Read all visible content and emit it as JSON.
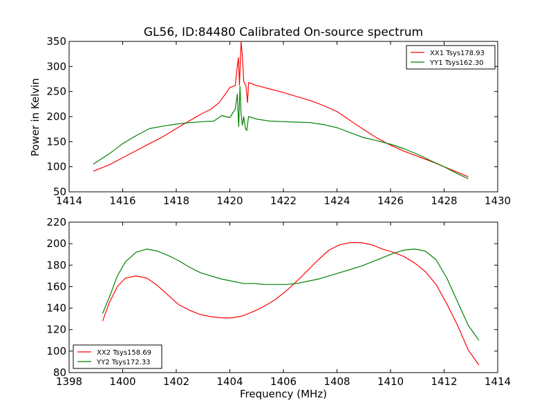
{
  "figure": {
    "title": "GL56, ID:84480 Calibrated On-source spectrum",
    "xlabel": "Frequency (MHz)",
    "ylabel": "Power in Kelvin"
  },
  "colors": {
    "red": "#ff0000",
    "green": "#008000"
  },
  "chart_data": [
    {
      "type": "line",
      "title": "GL56, ID:84480 Calibrated On-source spectrum",
      "xlabel": "",
      "ylabel": "Power in Kelvin",
      "xlim": [
        1414,
        1430
      ],
      "ylim": [
        50,
        350
      ],
      "xticks": [
        1414,
        1416,
        1418,
        1420,
        1422,
        1424,
        1426,
        1428,
        1430
      ],
      "yticks": [
        50,
        100,
        150,
        200,
        250,
        300,
        350
      ],
      "grid": false,
      "legend": "top-right",
      "series": [
        {
          "name": "XX1 Tsys178.93",
          "color": "#ff0000",
          "points": [
            [
              1414.9,
              91
            ],
            [
              1415.5,
              104
            ],
            [
              1416,
              118
            ],
            [
              1416.5,
              132
            ],
            [
              1417,
              146
            ],
            [
              1417.5,
              160
            ],
            [
              1418,
              176
            ],
            [
              1418.5,
              192
            ],
            [
              1419,
              207
            ],
            [
              1419.3,
              215
            ],
            [
              1419.6,
              228
            ],
            [
              1419.9,
              250
            ],
            [
              1420.0,
              258
            ],
            [
              1420.2,
              262
            ],
            [
              1420.28,
              300
            ],
            [
              1420.32,
              318
            ],
            [
              1420.36,
              262
            ],
            [
              1420.42,
              350
            ],
            [
              1420.47,
              320
            ],
            [
              1420.52,
              270
            ],
            [
              1420.6,
              262
            ],
            [
              1420.66,
              228
            ],
            [
              1420.7,
              268
            ],
            [
              1421,
              262
            ],
            [
              1421.5,
              255
            ],
            [
              1422,
              248
            ],
            [
              1422.5,
              240
            ],
            [
              1423,
              232
            ],
            [
              1423.5,
              222
            ],
            [
              1424,
              210
            ],
            [
              1424.5,
              192
            ],
            [
              1425,
              174
            ],
            [
              1425.5,
              157
            ],
            [
              1426,
              143
            ],
            [
              1426.5,
              131
            ],
            [
              1427,
              121
            ],
            [
              1427.5,
              111
            ],
            [
              1428,
              100
            ],
            [
              1428.5,
              89
            ],
            [
              1428.9,
              80
            ]
          ]
        },
        {
          "name": "YY1 Tsys162.30",
          "color": "#008000",
          "points": [
            [
              1414.9,
              105
            ],
            [
              1415.5,
              126
            ],
            [
              1416,
              146
            ],
            [
              1416.5,
              162
            ],
            [
              1417,
              176
            ],
            [
              1417.5,
              181
            ],
            [
              1418,
              185
            ],
            [
              1418.5,
              188
            ],
            [
              1419,
              190
            ],
            [
              1419.4,
              191
            ],
            [
              1419.7,
              202
            ],
            [
              1420,
              198
            ],
            [
              1420.2,
              215
            ],
            [
              1420.28,
              245
            ],
            [
              1420.33,
              180
            ],
            [
              1420.38,
              260
            ],
            [
              1420.42,
              205
            ],
            [
              1420.47,
              183
            ],
            [
              1420.52,
              200
            ],
            [
              1420.58,
              177
            ],
            [
              1420.63,
              172
            ],
            [
              1420.7,
              200
            ],
            [
              1421,
              195
            ],
            [
              1421.5,
              191
            ],
            [
              1422,
              190
            ],
            [
              1422.5,
              189
            ],
            [
              1423,
              188
            ],
            [
              1423.5,
              184
            ],
            [
              1424,
              178
            ],
            [
              1424.5,
              168
            ],
            [
              1425,
              158
            ],
            [
              1425.5,
              152
            ],
            [
              1426,
              145
            ],
            [
              1426.5,
              136
            ],
            [
              1427,
              125
            ],
            [
              1427.5,
              112
            ],
            [
              1428,
              100
            ],
            [
              1428.5,
              86
            ],
            [
              1428.9,
              76
            ]
          ]
        }
      ]
    },
    {
      "type": "line",
      "title": "",
      "xlabel": "Frequency (MHz)",
      "ylabel": "",
      "xlim": [
        1398,
        1414
      ],
      "ylim": [
        80,
        220
      ],
      "xticks": [
        1398,
        1400,
        1402,
        1404,
        1406,
        1408,
        1410,
        1412,
        1414
      ],
      "yticks": [
        80,
        100,
        120,
        140,
        160,
        180,
        200,
        220
      ],
      "grid": false,
      "legend": "bottom-left",
      "series": [
        {
          "name": "XX2 Tsys158.69",
          "color": "#ff0000",
          "points": [
            [
              1399.25,
              128
            ],
            [
              1399.5,
              145
            ],
            [
              1399.8,
              160
            ],
            [
              1400.1,
              168
            ],
            [
              1400.5,
              170
            ],
            [
              1400.9,
              168
            ],
            [
              1401.3,
              161
            ],
            [
              1401.7,
              152
            ],
            [
              1402.1,
              143
            ],
            [
              1402.5,
              138
            ],
            [
              1402.9,
              134
            ],
            [
              1403.3,
              132
            ],
            [
              1403.7,
              131
            ],
            [
              1404.1,
              131
            ],
            [
              1404.5,
              133
            ],
            [
              1404.9,
              137
            ],
            [
              1405.3,
              142
            ],
            [
              1405.7,
              148
            ],
            [
              1406.1,
              156
            ],
            [
              1406.5,
              165
            ],
            [
              1406.9,
              175
            ],
            [
              1407.3,
              185
            ],
            [
              1407.7,
              194
            ],
            [
              1408.1,
              199
            ],
            [
              1408.5,
              201
            ],
            [
              1408.9,
              201
            ],
            [
              1409.3,
              199
            ],
            [
              1409.7,
              195
            ],
            [
              1410.1,
              192
            ],
            [
              1410.5,
              188
            ],
            [
              1410.9,
              182
            ],
            [
              1411.3,
              174
            ],
            [
              1411.7,
              162
            ],
            [
              1412.1,
              144
            ],
            [
              1412.5,
              124
            ],
            [
              1412.9,
              101
            ],
            [
              1413.3,
              87
            ]
          ]
        },
        {
          "name": "YY2 Tsys172.33",
          "color": "#008000",
          "points": [
            [
              1399.25,
              135
            ],
            [
              1399.5,
              150
            ],
            [
              1399.8,
              170
            ],
            [
              1400.1,
              183
            ],
            [
              1400.5,
              192
            ],
            [
              1400.9,
              195
            ],
            [
              1401.3,
              193
            ],
            [
              1401.7,
              189
            ],
            [
              1402.1,
              184
            ],
            [
              1402.5,
              178
            ],
            [
              1402.9,
              173
            ],
            [
              1403.3,
              170
            ],
            [
              1403.7,
              167
            ],
            [
              1404.1,
              165
            ],
            [
              1404.5,
              163
            ],
            [
              1404.9,
              163
            ],
            [
              1405.3,
              162
            ],
            [
              1405.7,
              162
            ],
            [
              1406.1,
              162
            ],
            [
              1406.5,
              163
            ],
            [
              1406.9,
              165
            ],
            [
              1407.3,
              167
            ],
            [
              1407.7,
              170
            ],
            [
              1408.1,
              173
            ],
            [
              1408.5,
              176
            ],
            [
              1408.9,
              179
            ],
            [
              1409.3,
              183
            ],
            [
              1409.7,
              187
            ],
            [
              1410.1,
              191
            ],
            [
              1410.5,
              194
            ],
            [
              1410.9,
              195
            ],
            [
              1411.3,
              193
            ],
            [
              1411.7,
              185
            ],
            [
              1412.1,
              168
            ],
            [
              1412.5,
              146
            ],
            [
              1412.9,
              124
            ],
            [
              1413.3,
              110
            ]
          ]
        }
      ]
    }
  ]
}
